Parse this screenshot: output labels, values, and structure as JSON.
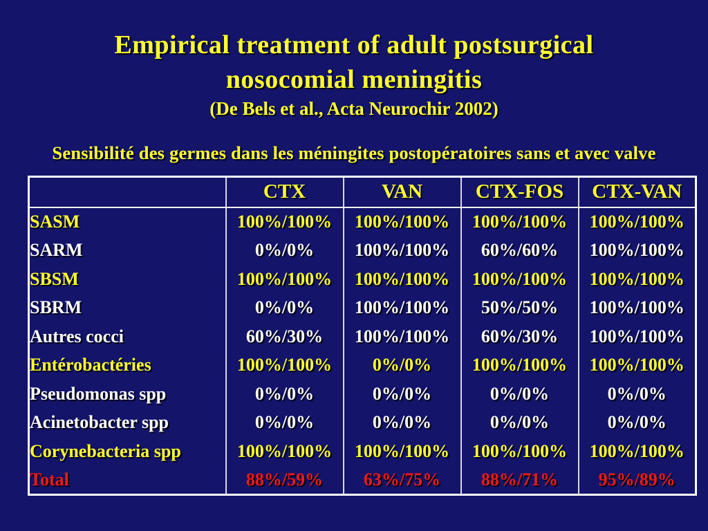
{
  "colors": {
    "background": "#14146A",
    "accent_yellow": "#FFFF2E",
    "text_white": "#FFFFFF",
    "total_red": "#F01818",
    "table_border": "#FFFFFF"
  },
  "title": {
    "line1": "Empirical treatment of adult postsurgical",
    "line2": "nosocomial meningitis",
    "citation": "(De Bels et al., Acta Neurochir 2002)"
  },
  "subtitle": "Sensibilité des germes dans les méningites postopératoires sans et avec valve",
  "table": {
    "columns": [
      "",
      "CTX",
      "VAN",
      "CTX-FOS",
      "CTX-VAN"
    ],
    "rows": [
      {
        "label": "SASM",
        "values": [
          "100%/100%",
          "100%/100%",
          "100%/100%",
          "100%/100%"
        ],
        "tone": "yellow"
      },
      {
        "label": "SARM",
        "values": [
          "0%/0%",
          "100%/100%",
          "60%/60%",
          "100%/100%"
        ],
        "tone": "white"
      },
      {
        "label": "SBSM",
        "values": [
          "100%/100%",
          "100%/100%",
          "100%/100%",
          "100%/100%"
        ],
        "tone": "yellow"
      },
      {
        "label": "SBRM",
        "values": [
          "0%/0%",
          "100%/100%",
          "50%/50%",
          "100%/100%"
        ],
        "tone": "white"
      },
      {
        "label": "Autres cocci",
        "values": [
          "60%/30%",
          "100%/100%",
          "60%/30%",
          "100%/100%"
        ],
        "tone": "white"
      },
      {
        "label": "Entérobactéries",
        "values": [
          "100%/100%",
          "0%/0%",
          "100%/100%",
          "100%/100%"
        ],
        "tone": "yellow"
      },
      {
        "label": "Pseudomonas spp",
        "values": [
          "0%/0%",
          "0%/0%",
          "0%/0%",
          "0%/0%"
        ],
        "tone": "white"
      },
      {
        "label": "Acinetobacter spp",
        "values": [
          "0%/0%",
          "0%/0%",
          "0%/0%",
          "0%/0%"
        ],
        "tone": "white"
      },
      {
        "label": "Corynebacteria spp",
        "values": [
          "100%/100%",
          "100%/100%",
          "100%/100%",
          "100%/100%"
        ],
        "tone": "yellow"
      },
      {
        "label": "Total",
        "values": [
          "88%/59%",
          "63%/75%",
          "88%/71%",
          "95%/89%"
        ],
        "tone": "red"
      }
    ]
  }
}
